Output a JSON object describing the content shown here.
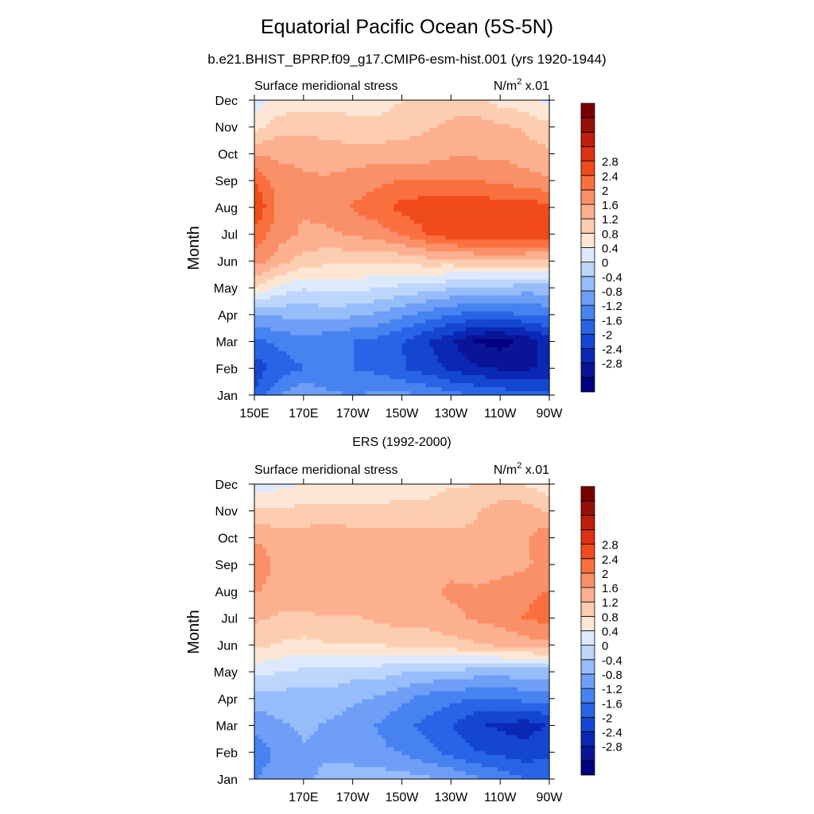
{
  "title": "Equatorial Pacific Ocean (5S-5N)",
  "subtitle": "b.e21.BHIST_BPRP.f09_g17.CMIP6-esm-hist.001 (yrs 1920-1944)",
  "second_title": "ERS (1992-2000)",
  "colors": {
    "scale": [
      "#000080",
      "#0a1496",
      "#0a28b4",
      "#1446d2",
      "#2864e6",
      "#4682f0",
      "#6e9ef5",
      "#96bcf9",
      "#bcd6fb",
      "#ddeafd",
      "#fde7d4",
      "#fdcdb0",
      "#fcb090",
      "#fa9068",
      "#f9703e",
      "#f04b1a",
      "#dc3212",
      "#be1e0a",
      "#961005",
      "#7a0000"
    ]
  },
  "chart_data": [
    {
      "type": "heatmap",
      "panel": "model",
      "left_label": "Surface meridional stress",
      "right_label_main": "N/m",
      "right_label_sup": "2",
      "right_label_tail": " x.01",
      "ylabel": "Month",
      "y_ticks": [
        "Jan",
        "Feb",
        "Mar",
        "Apr",
        "May",
        "Jun",
        "Jul",
        "Aug",
        "Sep",
        "Oct",
        "Nov",
        "Dec"
      ],
      "x_ticks": [
        "150E",
        "170E",
        "170W",
        "150W",
        "130W",
        "110W",
        "90W"
      ],
      "x_range": [
        150,
        270
      ],
      "colorbar_labels": [
        "-2.8",
        "-2.4",
        "-2",
        "-1.6",
        "-1.2",
        "-0.8",
        "-0.4",
        "0",
        "0.4",
        "0.8",
        "1.2",
        "1.6",
        "2",
        "2.4",
        "2.8"
      ],
      "levels": [
        -3.2,
        3.2
      ],
      "months": [
        "Jan",
        "Feb",
        "Mar",
        "Apr",
        "May",
        "Jun",
        "Jul",
        "Aug",
        "Sep",
        "Oct",
        "Nov",
        "Dec"
      ],
      "longitudes": [
        150,
        160,
        170,
        180,
        190,
        200,
        210,
        220,
        230,
        240,
        250,
        260,
        270
      ],
      "values": [
        [
          -1.9,
          -1.3,
          -1.0,
          -1.2,
          -1.3,
          -1.2,
          -1.2,
          -1.3,
          -1.5,
          -1.6,
          -1.7,
          -1.8,
          -1.8
        ],
        [
          -2.1,
          -1.8,
          -1.6,
          -1.6,
          -1.6,
          -1.7,
          -1.9,
          -2.1,
          -2.3,
          -2.5,
          -2.6,
          -2.6,
          -2.5
        ],
        [
          -1.7,
          -1.5,
          -1.4,
          -1.5,
          -1.6,
          -1.7,
          -1.9,
          -2.2,
          -2.5,
          -2.9,
          -3.0,
          -2.8,
          -2.4
        ],
        [
          -1.0,
          -0.9,
          -0.9,
          -0.8,
          -0.9,
          -1.0,
          -1.2,
          -1.4,
          -1.6,
          -1.7,
          -1.7,
          -1.6,
          -1.5
        ],
        [
          0.3,
          -0.1,
          -0.3,
          -0.2,
          -0.2,
          -0.3,
          -0.4,
          -0.5,
          -0.6,
          -0.7,
          -0.7,
          -0.8,
          -0.8
        ],
        [
          1.1,
          0.8,
          0.5,
          0.4,
          0.4,
          0.4,
          0.4,
          0.5,
          0.5,
          0.6,
          0.6,
          0.6,
          0.6
        ],
        [
          1.5,
          1.1,
          0.9,
          0.9,
          1.0,
          1.1,
          1.3,
          1.6,
          1.8,
          1.9,
          1.9,
          1.9,
          1.8
        ],
        [
          1.9,
          1.2,
          1.0,
          1.1,
          1.3,
          1.5,
          1.7,
          1.8,
          1.8,
          1.8,
          1.8,
          1.8,
          1.7
        ],
        [
          1.6,
          1.1,
          1.0,
          1.0,
          1.1,
          1.2,
          1.3,
          1.3,
          1.3,
          1.3,
          1.2,
          1.1,
          1.0
        ],
        [
          0.9,
          0.9,
          0.9,
          0.8,
          0.8,
          0.8,
          0.8,
          0.8,
          0.9,
          0.9,
          0.9,
          0.8,
          0.7
        ],
        [
          0.2,
          0.5,
          0.5,
          0.5,
          0.4,
          0.4,
          0.5,
          0.6,
          0.7,
          0.8,
          0.7,
          0.6,
          0.4
        ],
        [
          -0.2,
          0.1,
          0.2,
          0.2,
          0.2,
          0.2,
          0.3,
          0.4,
          0.5,
          0.4,
          0.2,
          0.1,
          -0.1
        ]
      ]
    },
    {
      "type": "heatmap",
      "panel": "observations",
      "left_label": "Surface meridional stress",
      "right_label_main": "N/m",
      "right_label_sup": "2",
      "right_label_tail": " x.01",
      "ylabel": "Month",
      "y_ticks": [
        "Jan",
        "Feb",
        "Mar",
        "Apr",
        "May",
        "Jun",
        "Jul",
        "Aug",
        "Sep",
        "Oct",
        "Nov",
        "Dec"
      ],
      "x_ticks": [
        "170E",
        "170W",
        "150W",
        "130W",
        "110W",
        "90W"
      ],
      "x_range": [
        150,
        270
      ],
      "colorbar_labels": [
        "-2.8",
        "-2.4",
        "-2",
        "-1.6",
        "-1.2",
        "-0.8",
        "-0.4",
        "0",
        "0.4",
        "0.8",
        "1.2",
        "1.6",
        "2",
        "2.4",
        "2.8"
      ],
      "levels": [
        -3.2,
        3.2
      ],
      "months": [
        "Jan",
        "Feb",
        "Mar",
        "Apr",
        "May",
        "Jun",
        "Jul",
        "Aug",
        "Sep",
        "Oct",
        "Nov",
        "Dec"
      ],
      "longitudes": [
        150,
        160,
        170,
        180,
        190,
        200,
        210,
        220,
        230,
        240,
        250,
        260,
        270
      ],
      "values": [
        [
          -1.3,
          -1.1,
          -1.0,
          -0.9,
          -0.8,
          -0.8,
          -0.8,
          -0.9,
          -1.0,
          -1.2,
          -1.4,
          -1.6,
          -1.7
        ],
        [
          -1.5,
          -1.2,
          -1.0,
          -1.0,
          -1.1,
          -1.2,
          -1.3,
          -1.5,
          -1.7,
          -1.9,
          -2.0,
          -2.1,
          -2.0
        ],
        [
          -1.2,
          -1.0,
          -0.9,
          -1.0,
          -1.1,
          -1.3,
          -1.5,
          -1.7,
          -1.9,
          -2.2,
          -2.3,
          -2.4,
          -2.2
        ],
        [
          -0.8,
          -0.8,
          -0.8,
          -0.8,
          -0.9,
          -1.0,
          -1.2,
          -1.4,
          -1.5,
          -1.6,
          -1.6,
          -1.5,
          -1.5
        ],
        [
          -0.2,
          -0.3,
          -0.4,
          -0.4,
          -0.5,
          -0.5,
          -0.6,
          -0.7,
          -0.7,
          -0.8,
          -0.8,
          -0.8,
          -0.8
        ],
        [
          0.4,
          0.3,
          0.2,
          0.3,
          0.3,
          0.3,
          0.4,
          0.4,
          0.5,
          0.6,
          0.7,
          0.8,
          0.9
        ],
        [
          0.7,
          0.6,
          0.6,
          0.6,
          0.6,
          0.7,
          0.8,
          0.8,
          0.9,
          1.0,
          1.1,
          1.3,
          1.4
        ],
        [
          1.0,
          0.8,
          0.8,
          0.9,
          0.9,
          0.9,
          0.9,
          0.9,
          1.0,
          1.0,
          1.1,
          1.2,
          1.3
        ],
        [
          1.3,
          0.8,
          0.9,
          0.9,
          0.9,
          0.9,
          0.9,
          0.9,
          0.9,
          0.8,
          0.8,
          0.9,
          1.1
        ],
        [
          0.9,
          0.8,
          0.8,
          0.9,
          0.8,
          0.8,
          0.8,
          0.8,
          0.7,
          0.7,
          0.8,
          0.9,
          1.2
        ],
        [
          0.4,
          0.4,
          0.4,
          0.4,
          0.4,
          0.4,
          0.4,
          0.4,
          0.5,
          0.6,
          0.8,
          0.8,
          0.6
        ],
        [
          -0.2,
          -0.1,
          0.0,
          0.1,
          0.0,
          0.1,
          0.2,
          0.2,
          0.3,
          0.3,
          0.4,
          0.3,
          0.1
        ]
      ]
    }
  ]
}
